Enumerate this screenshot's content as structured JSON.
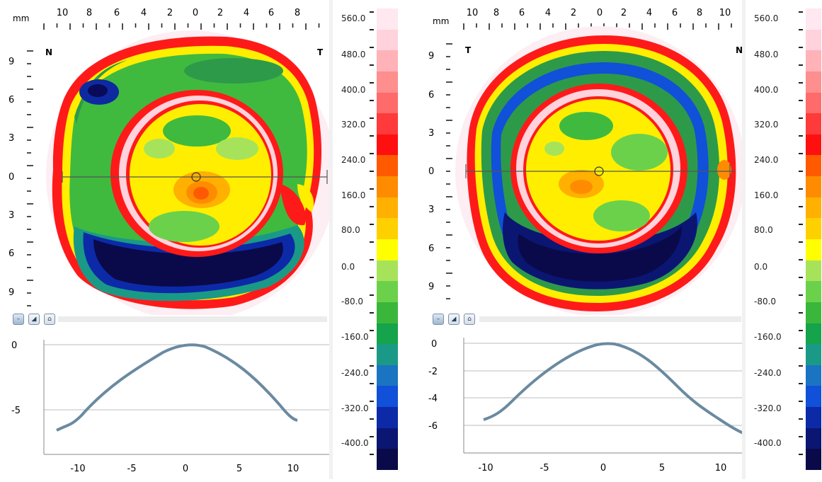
{
  "maps": [
    {
      "id": "left",
      "unit_label": "mm",
      "top_ticks": [
        "10",
        "8",
        "6",
        "4",
        "2",
        "0",
        "2",
        "4",
        "6",
        "8"
      ],
      "left_ticks": [
        "9",
        "6",
        "3",
        "0",
        "3",
        "6",
        "9"
      ],
      "corner_left": "N",
      "corner_right": "T",
      "profile": {
        "y_ticks": [
          "0",
          "-5"
        ],
        "x_ticks": [
          "-10",
          "-5",
          "0",
          "5",
          "10"
        ]
      },
      "scale_labels": [
        "560.0",
        "480.0",
        "400.0",
        "320.0",
        "240.0",
        "160.0",
        "80.0",
        "0.0",
        "-80.0",
        "-160.0",
        "-240.0",
        "-320.0",
        "-400.0"
      ]
    },
    {
      "id": "right",
      "unit_label": "mm",
      "top_ticks": [
        "10",
        "8",
        "6",
        "4",
        "2",
        "0",
        "2",
        "4",
        "6",
        "8",
        "10"
      ],
      "left_ticks": [
        "9",
        "6",
        "3",
        "0",
        "3",
        "6",
        "9"
      ],
      "corner_left": "T",
      "corner_right": "N",
      "profile": {
        "y_ticks": [
          "0",
          "-2",
          "-4",
          "-6"
        ],
        "x_ticks": [
          "-10",
          "-5",
          "0",
          "5",
          "10"
        ]
      },
      "scale_labels": [
        "560.0",
        "480.0",
        "400.0",
        "320.0",
        "240.0",
        "160.0",
        "80.0",
        "0.0",
        "-80.0",
        "-160.0",
        "-240.0",
        "-320.0",
        "-400.0"
      ]
    }
  ],
  "toolbar": {
    "minus_icon": "minus-icon",
    "zoom_icon": "zoom-icon",
    "home_icon": "home-icon"
  },
  "colors": {
    "scale": [
      "#0a0a4a",
      "#0b1673",
      "#0c2aa8",
      "#1150d8",
      "#1b74c2",
      "#1a9a86",
      "#15a34b",
      "#3ab73a",
      "#6cd14a",
      "#a6e35a",
      "#ffff00",
      "#ffd000",
      "#ffb000",
      "#ff8c00",
      "#ff5a00",
      "#ff1010",
      "#ff3a3a",
      "#ff6a6a",
      "#ff8e8e",
      "#ffb2b8",
      "#ffd2dc",
      "#ffe8ef"
    ],
    "profile_line": "#6a8aa0",
    "grid": "#bdbdbd"
  }
}
